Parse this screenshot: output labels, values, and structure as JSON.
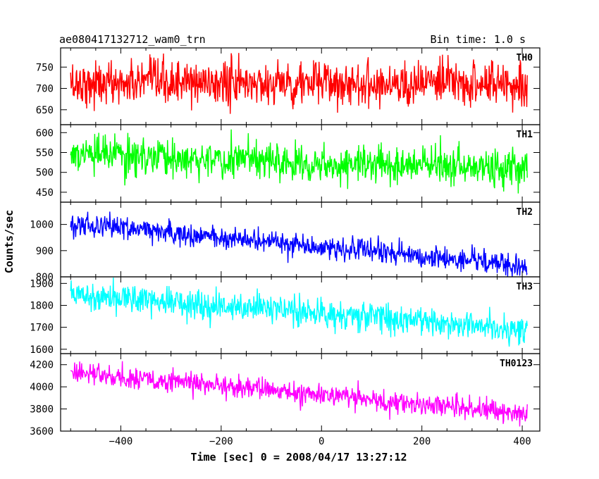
{
  "header": {
    "title": "ae080417132712_wam0_trn",
    "bin_time": "Bin time: 1.0 s"
  },
  "chart_data": {
    "type": "line",
    "title": "ae080417132712_wam0_trn",
    "xlabel": "Time [sec] 0 = 2008/04/17 13:27:12",
    "ylabel": "Counts/sec",
    "xlim": [
      -520,
      435
    ],
    "x_ticks": [
      -400,
      -200,
      0,
      200,
      400
    ],
    "x_range_data": [
      -500,
      410
    ],
    "bin_time_s": 1.0,
    "panels": [
      {
        "name": "TH0",
        "color": "#ff0000",
        "ylim": [
          615,
          795
        ],
        "y_ticks": [
          650,
          700,
          750
        ],
        "trend": [
          [
            -500,
            712
          ],
          [
            410,
            712
          ]
        ],
        "noise_amplitude": 42
      },
      {
        "name": "TH1",
        "color": "#00ff00",
        "ylim": [
          425,
          620
        ],
        "y_ticks": [
          450,
          500,
          550,
          600
        ],
        "trend": [
          [
            -500,
            545
          ],
          [
            410,
            508
          ]
        ],
        "noise_amplitude": 38
      },
      {
        "name": "TH2",
        "color": "#0000ff",
        "ylim": [
          800,
          1085
        ],
        "y_ticks": [
          800,
          900,
          1000
        ],
        "trend": [
          [
            -500,
            1005
          ],
          [
            410,
            840
          ]
        ],
        "noise_amplitude": 35
      },
      {
        "name": "TH3",
        "color": "#00ffff",
        "ylim": [
          1580,
          1930
        ],
        "y_ticks": [
          1600,
          1700,
          1800,
          1900
        ],
        "trend": [
          [
            -500,
            1855
          ],
          [
            410,
            1690
          ]
        ],
        "noise_amplitude": 55
      },
      {
        "name": "TH0123",
        "color": "#ff00ff",
        "ylim": [
          3600,
          4300
        ],
        "y_ticks": [
          3600,
          3800,
          4000,
          4200
        ],
        "trend": [
          [
            -500,
            4130
          ],
          [
            410,
            3760
          ]
        ],
        "noise_amplitude": 80
      }
    ]
  }
}
